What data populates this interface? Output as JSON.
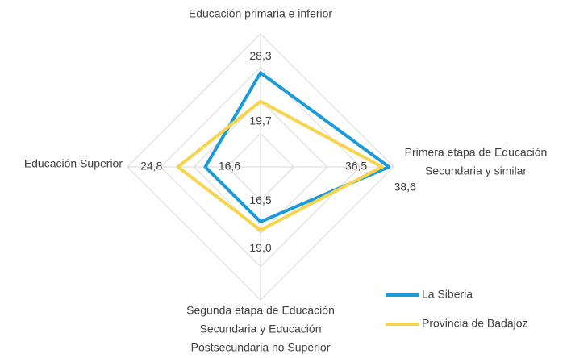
{
  "chart_data": {
    "type": "radar",
    "categories": [
      [
        "Educación primaria e inferior"
      ],
      [
        "Primera etapa de Educación",
        "Secundaria y similar"
      ],
      [
        "Segunda etapa de Educación",
        "Secundaria y Educación",
        "Postsecundaria no Superior"
      ],
      [
        "Educación Superior"
      ]
    ],
    "series": [
      {
        "name": "La Siberia",
        "color": "#1b9bd7",
        "values": [
          28.3,
          38.6,
          16.5,
          16.6
        ],
        "value_labels": [
          "28,3",
          "38,6",
          "16,5",
          "16,6"
        ]
      },
      {
        "name": "Provincia de Badajoz",
        "color": "#f7d44c",
        "values": [
          19.7,
          36.5,
          19.0,
          24.8
        ],
        "value_labels": [
          "19,7",
          "36,5",
          "19,0",
          "24,8"
        ]
      }
    ],
    "rlim": [
      0,
      40
    ],
    "rticks": [
      10,
      20,
      30,
      40
    ],
    "grid": true,
    "legend": "lower right"
  }
}
